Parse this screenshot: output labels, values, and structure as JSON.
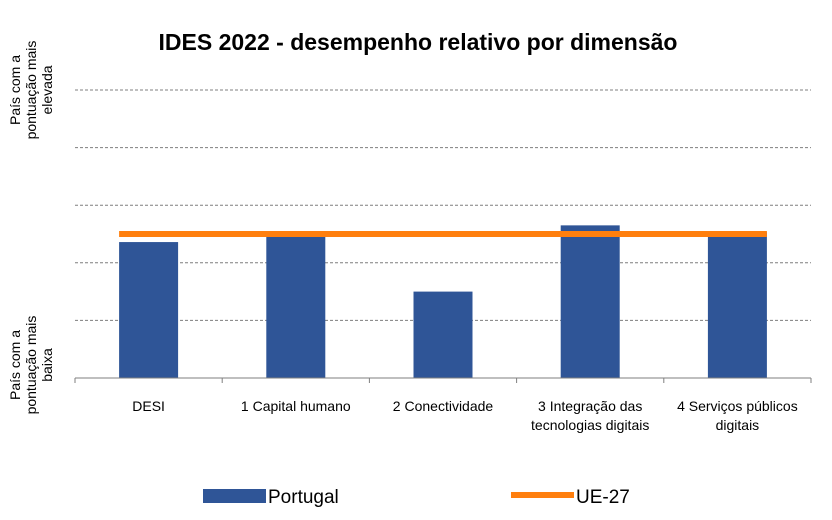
{
  "chart_data": {
    "type": "bar",
    "title": "IDES 2022 - desempenho relativo por dimensão",
    "categories": [
      [
        "DESI"
      ],
      [
        "1 Capital humano"
      ],
      [
        "2 Conectividade"
      ],
      [
        "3 Integração das",
        "tecnologias digitais"
      ],
      [
        "4 Serviços públicos",
        "digitais"
      ]
    ],
    "series": [
      {
        "name": "Portugal",
        "type": "bar",
        "color": "#2f5597",
        "values": [
          2.36,
          2.5,
          1.5,
          2.65,
          2.53
        ]
      },
      {
        "name": "UE-27",
        "type": "line",
        "color": "#ff7f0e",
        "values": [
          2.5,
          2.5,
          2.5,
          2.5,
          2.5
        ]
      }
    ],
    "ylim": [
      0,
      5
    ],
    "y_axis_labels": {
      "top": [
        "País com a",
        "pontuação mais",
        "elevada"
      ],
      "bottom": [
        "País com a",
        "pontuação mais",
        "baixa"
      ]
    },
    "grid": "dashed horizontal",
    "legend": "bottom"
  }
}
